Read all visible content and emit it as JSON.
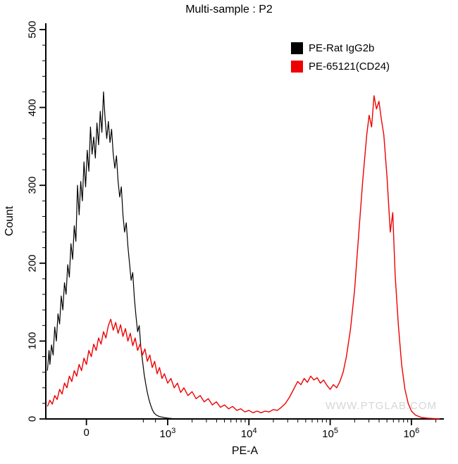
{
  "title": "Multi-sample : P2",
  "watermark": "WWW.PTGLAB.COM",
  "legend": [
    {
      "label": "PE-Rat IgG2b",
      "color": "#000000"
    },
    {
      "label": "PE-65121(CD24)",
      "color": "#ee0000"
    }
  ],
  "chart_data": {
    "type": "line",
    "subtype": "flow-cytometry-histogram-overlay",
    "title": "Multi-sample : P2",
    "xlabel": "PE-A",
    "ylabel": "Count",
    "ylim": [
      0,
      500
    ],
    "grid": false,
    "legend_position": "top-right-inside",
    "x_scale": "biexponential; t units: t=0 at 0, t=1 at 1e3, t=2 at 1e4, t=3 at 1e5, t=4 at 1e6; plot spans t=-0.5 to t=4.4",
    "x_ticks": [
      {
        "t": 0,
        "label": "0",
        "value": 0
      },
      {
        "t": 1,
        "base": "10",
        "exp": "3",
        "value": 1000
      },
      {
        "t": 2,
        "base": "10",
        "exp": "4",
        "value": 10000
      },
      {
        "t": 3,
        "base": "10",
        "exp": "5",
        "value": 100000
      },
      {
        "t": 4,
        "base": "10",
        "exp": "6",
        "value": 1000000
      }
    ],
    "y_ticks": [
      0,
      100,
      200,
      300,
      400,
      500
    ],
    "y_minor_step": 20,
    "series": [
      {
        "name": "PE-Rat IgG2b",
        "color": "#000000",
        "peak_count": 420,
        "points": [
          [
            -0.48,
            62
          ],
          [
            -0.46,
            88
          ],
          [
            -0.45,
            70
          ],
          [
            -0.43,
            95
          ],
          [
            -0.41,
            82
          ],
          [
            -0.39,
            118
          ],
          [
            -0.37,
            100
          ],
          [
            -0.35,
            135
          ],
          [
            -0.33,
            122
          ],
          [
            -0.31,
            158
          ],
          [
            -0.29,
            140
          ],
          [
            -0.27,
            175
          ],
          [
            -0.25,
            160
          ],
          [
            -0.23,
            198
          ],
          [
            -0.21,
            182
          ],
          [
            -0.19,
            225
          ],
          [
            -0.17,
            205
          ],
          [
            -0.15,
            248
          ],
          [
            -0.13,
            228
          ],
          [
            -0.11,
            300
          ],
          [
            -0.09,
            262
          ],
          [
            -0.07,
            305
          ],
          [
            -0.05,
            280
          ],
          [
            -0.03,
            330
          ],
          [
            -0.01,
            298
          ],
          [
            0.01,
            345
          ],
          [
            0.03,
            318
          ],
          [
            0.05,
            375
          ],
          [
            0.07,
            340
          ],
          [
            0.09,
            362
          ],
          [
            0.11,
            335
          ],
          [
            0.13,
            380
          ],
          [
            0.15,
            352
          ],
          [
            0.17,
            395
          ],
          [
            0.19,
            368
          ],
          [
            0.21,
            420
          ],
          [
            0.23,
            385
          ],
          [
            0.25,
            360
          ],
          [
            0.27,
            382
          ],
          [
            0.29,
            355
          ],
          [
            0.31,
            372
          ],
          [
            0.33,
            340
          ],
          [
            0.35,
            322
          ],
          [
            0.37,
            338
          ],
          [
            0.39,
            305
          ],
          [
            0.41,
            285
          ],
          [
            0.43,
            298
          ],
          [
            0.45,
            262
          ],
          [
            0.47,
            240
          ],
          [
            0.49,
            252
          ],
          [
            0.51,
            222
          ],
          [
            0.53,
            200
          ],
          [
            0.55,
            178
          ],
          [
            0.57,
            188
          ],
          [
            0.59,
            155
          ],
          [
            0.61,
            132
          ],
          [
            0.63,
            112
          ],
          [
            0.65,
            120
          ],
          [
            0.67,
            92
          ],
          [
            0.69,
            75
          ],
          [
            0.71,
            58
          ],
          [
            0.73,
            45
          ],
          [
            0.75,
            34
          ],
          [
            0.77,
            25
          ],
          [
            0.79,
            18
          ],
          [
            0.81,
            12
          ],
          [
            0.83,
            8
          ],
          [
            0.86,
            5
          ],
          [
            0.9,
            3
          ],
          [
            0.95,
            2
          ],
          [
            1.0,
            1
          ],
          [
            1.1,
            0
          ],
          [
            1.3,
            0
          ]
        ]
      },
      {
        "name": "PE-65121(CD24)",
        "color": "#ee0000",
        "peak_count": 415,
        "points": [
          [
            -0.48,
            16
          ],
          [
            -0.45,
            24
          ],
          [
            -0.42,
            19
          ],
          [
            -0.39,
            30
          ],
          [
            -0.36,
            25
          ],
          [
            -0.33,
            38
          ],
          [
            -0.3,
            32
          ],
          [
            -0.27,
            46
          ],
          [
            -0.24,
            40
          ],
          [
            -0.21,
            55
          ],
          [
            -0.18,
            48
          ],
          [
            -0.15,
            62
          ],
          [
            -0.12,
            55
          ],
          [
            -0.09,
            70
          ],
          [
            -0.06,
            62
          ],
          [
            -0.03,
            78
          ],
          [
            0.0,
            70
          ],
          [
            0.03,
            88
          ],
          [
            0.06,
            80
          ],
          [
            0.09,
            96
          ],
          [
            0.12,
            88
          ],
          [
            0.15,
            104
          ],
          [
            0.18,
            96
          ],
          [
            0.21,
            112
          ],
          [
            0.24,
            104
          ],
          [
            0.27,
            120
          ],
          [
            0.3,
            128
          ],
          [
            0.33,
            114
          ],
          [
            0.36,
            124
          ],
          [
            0.39,
            110
          ],
          [
            0.42,
            121
          ],
          [
            0.45,
            106
          ],
          [
            0.48,
            116
          ],
          [
            0.51,
            100
          ],
          [
            0.54,
            110
          ],
          [
            0.57,
            94
          ],
          [
            0.6,
            104
          ],
          [
            0.63,
            88
          ],
          [
            0.66,
            96
          ],
          [
            0.69,
            82
          ],
          [
            0.72,
            90
          ],
          [
            0.75,
            74
          ],
          [
            0.78,
            82
          ],
          [
            0.81,
            66
          ],
          [
            0.84,
            74
          ],
          [
            0.87,
            58
          ],
          [
            0.9,
            66
          ],
          [
            0.93,
            52
          ],
          [
            0.96,
            58
          ],
          [
            1.0,
            46
          ],
          [
            1.04,
            52
          ],
          [
            1.08,
            40
          ],
          [
            1.12,
            46
          ],
          [
            1.16,
            34
          ],
          [
            1.2,
            40
          ],
          [
            1.25,
            30
          ],
          [
            1.3,
            35
          ],
          [
            1.35,
            26
          ],
          [
            1.4,
            30
          ],
          [
            1.45,
            22
          ],
          [
            1.5,
            26
          ],
          [
            1.55,
            18
          ],
          [
            1.6,
            22
          ],
          [
            1.65,
            15
          ],
          [
            1.7,
            18
          ],
          [
            1.75,
            13
          ],
          [
            1.8,
            16
          ],
          [
            1.85,
            11
          ],
          [
            1.9,
            13
          ],
          [
            1.95,
            9
          ],
          [
            2.0,
            11
          ],
          [
            2.05,
            8
          ],
          [
            2.1,
            10
          ],
          [
            2.15,
            8
          ],
          [
            2.2,
            10
          ],
          [
            2.25,
            9
          ],
          [
            2.3,
            12
          ],
          [
            2.35,
            11
          ],
          [
            2.4,
            15
          ],
          [
            2.45,
            20
          ],
          [
            2.5,
            28
          ],
          [
            2.55,
            38
          ],
          [
            2.6,
            48
          ],
          [
            2.64,
            44
          ],
          [
            2.68,
            52
          ],
          [
            2.72,
            47
          ],
          [
            2.76,
            55
          ],
          [
            2.8,
            50
          ],
          [
            2.84,
            53
          ],
          [
            2.88,
            46
          ],
          [
            2.92,
            50
          ],
          [
            2.96,
            43
          ],
          [
            3.0,
            38
          ],
          [
            3.04,
            44
          ],
          [
            3.08,
            40
          ],
          [
            3.12,
            48
          ],
          [
            3.16,
            60
          ],
          [
            3.2,
            80
          ],
          [
            3.25,
            115
          ],
          [
            3.3,
            165
          ],
          [
            3.35,
            235
          ],
          [
            3.4,
            305
          ],
          [
            3.45,
            365
          ],
          [
            3.48,
            390
          ],
          [
            3.51,
            375
          ],
          [
            3.54,
            415
          ],
          [
            3.57,
            398
          ],
          [
            3.6,
            408
          ],
          [
            3.63,
            385
          ],
          [
            3.66,
            365
          ],
          [
            3.7,
            310
          ],
          [
            3.74,
            240
          ],
          [
            3.77,
            265
          ],
          [
            3.8,
            185
          ],
          [
            3.84,
            120
          ],
          [
            3.88,
            70
          ],
          [
            3.92,
            38
          ],
          [
            3.96,
            20
          ],
          [
            4.0,
            10
          ],
          [
            4.05,
            5
          ],
          [
            4.12,
            2
          ],
          [
            4.2,
            1
          ],
          [
            4.35,
            0
          ]
        ]
      }
    ]
  }
}
